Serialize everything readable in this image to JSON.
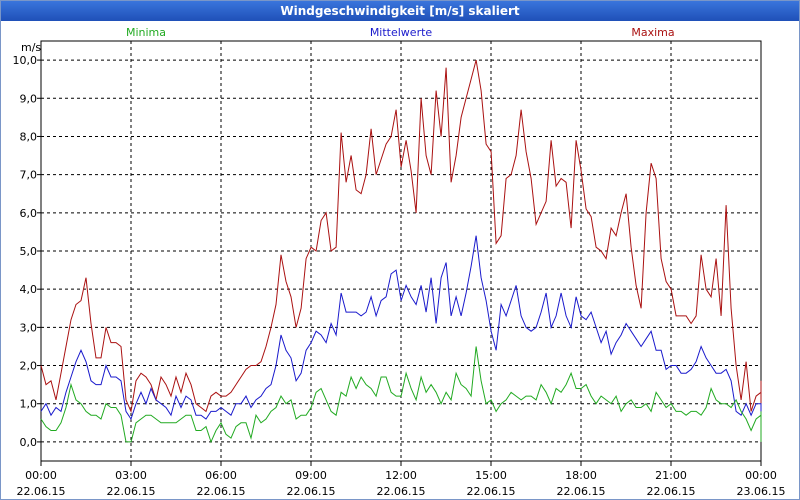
{
  "window": {
    "title": "Windgeschwindigkeit [m/s] skaliert"
  },
  "chart_data": {
    "type": "line",
    "title": "Windgeschwindigkeit [m/s] skaliert",
    "ylabel": "m/s",
    "xlabel": "",
    "ylim": [
      -0.5,
      10.5
    ],
    "xlim_hours": [
      0,
      24
    ],
    "grid": true,
    "y_ticks": [
      "0,0",
      "1,0",
      "2,0",
      "3,0",
      "4,0",
      "5,0",
      "6,0",
      "7,0",
      "8,0",
      "9,0",
      "10,0"
    ],
    "x_ticks": [
      {
        "time": "00:00",
        "date": "22.06.15"
      },
      {
        "time": "03:00",
        "date": "22.06.15"
      },
      {
        "time": "06:00",
        "date": "22.06.15"
      },
      {
        "time": "09:00",
        "date": "22.06.15"
      },
      {
        "time": "12:00",
        "date": "22.06.15"
      },
      {
        "time": "15:00",
        "date": "22.06.15"
      },
      {
        "time": "18:00",
        "date": "22.06.15"
      },
      {
        "time": "21:00",
        "date": "22.06.15"
      },
      {
        "time": "00:00",
        "date": "23.06.15"
      }
    ],
    "legend": [
      {
        "name": "Minima",
        "color": "#22aa22"
      },
      {
        "name": "Mittelwerte",
        "color": "#1a1acc"
      },
      {
        "name": "Maxima",
        "color": "#aa1111"
      }
    ],
    "interval_hours": 0.1667,
    "series": [
      {
        "name": "Maxima",
        "color": "#aa1111",
        "values": [
          2.0,
          1.5,
          1.6,
          1.1,
          1.8,
          2.5,
          3.2,
          3.6,
          3.7,
          4.3,
          3.1,
          2.2,
          2.2,
          3.0,
          2.6,
          2.6,
          2.5,
          1.1,
          0.8,
          1.6,
          1.8,
          1.7,
          1.5,
          1.1,
          1.7,
          1.5,
          1.2,
          1.7,
          1.3,
          1.8,
          1.5,
          1.0,
          0.9,
          0.8,
          1.2,
          1.3,
          1.2,
          1.2,
          1.3,
          1.5,
          1.7,
          1.9,
          2.0,
          2.0,
          2.1,
          2.5,
          3.0,
          3.6,
          4.9,
          4.2,
          3.8,
          3.0,
          3.5,
          4.8,
          5.1,
          5.0,
          5.8,
          6.0,
          5.0,
          5.1,
          8.1,
          6.8,
          7.5,
          6.6,
          6.5,
          7.0,
          8.2,
          7.0,
          7.4,
          7.8,
          8.0,
          8.7,
          7.2,
          7.9,
          7.1,
          6.0,
          9.0,
          7.5,
          7.0,
          9.2,
          8.0,
          9.8,
          6.8,
          7.5,
          8.5,
          9.0,
          9.5,
          10.0,
          9.2,
          7.8,
          7.6,
          5.2,
          5.4,
          6.9,
          7.0,
          7.5,
          8.7,
          7.6,
          6.9,
          5.7,
          6.0,
          6.3,
          7.9,
          6.7,
          6.9,
          6.8,
          5.6,
          7.9,
          7.1,
          6.1,
          5.9,
          5.1,
          5.0,
          4.8,
          5.6,
          5.4,
          6.0,
          6.5,
          5.1,
          4.1,
          3.5,
          6.0,
          7.3,
          6.9,
          4.8,
          4.2,
          4.0,
          3.3,
          3.3,
          3.3,
          3.1,
          3.3,
          4.9,
          4.0,
          3.8,
          4.8,
          3.3,
          6.2,
          3.5,
          2.0,
          1.1,
          2.1,
          0.8,
          1.2,
          1.3,
          1.3,
          1.0,
          1.6,
          1.2,
          0.9,
          0.8,
          0.8
        ]
      },
      {
        "name": "Mittelwerte",
        "color": "#1a1acc",
        "values": [
          0.8,
          1.0,
          0.7,
          0.9,
          0.8,
          1.3,
          1.7,
          2.1,
          2.4,
          2.1,
          1.6,
          1.5,
          1.5,
          2.0,
          1.7,
          1.7,
          1.6,
          0.8,
          0.6,
          1.0,
          1.3,
          1.0,
          1.4,
          1.1,
          1.0,
          0.9,
          0.7,
          1.2,
          0.9,
          1.2,
          1.1,
          0.7,
          0.7,
          0.6,
          0.8,
          0.8,
          0.9,
          0.8,
          0.7,
          1.0,
          1.0,
          1.2,
          0.9,
          1.1,
          1.2,
          1.4,
          1.5,
          2.0,
          2.8,
          2.4,
          2.2,
          1.6,
          1.8,
          2.4,
          2.6,
          2.9,
          2.8,
          2.6,
          3.1,
          2.8,
          3.9,
          3.4,
          3.4,
          3.4,
          3.3,
          3.4,
          3.8,
          3.3,
          3.7,
          3.8,
          4.4,
          4.5,
          3.7,
          4.1,
          3.8,
          3.6,
          4.1,
          3.4,
          4.3,
          3.1,
          4.3,
          4.7,
          3.3,
          3.8,
          3.3,
          3.9,
          4.6,
          5.4,
          4.3,
          3.7,
          2.9,
          2.4,
          3.6,
          3.3,
          3.7,
          4.1,
          3.3,
          3.0,
          2.9,
          3.0,
          3.4,
          3.9,
          3.0,
          3.3,
          3.9,
          3.3,
          3.0,
          3.8,
          3.3,
          3.2,
          3.4,
          3.0,
          2.6,
          2.9,
          2.3,
          2.6,
          2.8,
          3.1,
          2.9,
          2.7,
          2.5,
          2.7,
          2.9,
          2.4,
          2.4,
          1.9,
          2.0,
          2.0,
          1.8,
          1.8,
          1.9,
          2.1,
          2.5,
          2.2,
          2.0,
          1.8,
          1.8,
          1.9,
          1.6,
          0.8,
          0.7,
          1.0,
          0.7,
          1.0,
          1.0,
          0.8,
          0.8,
          0.9,
          0.9,
          0.7,
          0.5,
          0.6
        ]
      },
      {
        "name": "Minima",
        "color": "#22aa22",
        "values": [
          0.6,
          0.4,
          0.3,
          0.3,
          0.5,
          0.9,
          1.5,
          1.1,
          1.0,
          0.8,
          0.7,
          0.7,
          0.6,
          1.0,
          0.9,
          0.9,
          0.7,
          0.0,
          0.0,
          0.5,
          0.6,
          0.7,
          0.7,
          0.6,
          0.5,
          0.5,
          0.5,
          0.5,
          0.6,
          0.7,
          0.7,
          0.3,
          0.3,
          0.4,
          0.0,
          0.3,
          0.5,
          0.2,
          0.1,
          0.4,
          0.5,
          0.5,
          0.1,
          0.7,
          0.5,
          0.6,
          0.8,
          0.9,
          1.2,
          1.0,
          1.1,
          0.6,
          0.7,
          0.7,
          0.9,
          1.3,
          1.4,
          1.1,
          0.8,
          0.7,
          1.3,
          1.2,
          1.7,
          1.4,
          1.7,
          1.5,
          1.4,
          1.2,
          1.7,
          1.7,
          1.3,
          1.2,
          1.2,
          1.8,
          1.4,
          1.1,
          1.7,
          1.3,
          1.5,
          1.3,
          1.0,
          1.3,
          1.1,
          1.8,
          1.5,
          1.4,
          1.2,
          2.5,
          1.6,
          1.0,
          1.1,
          0.8,
          1.0,
          1.1,
          1.3,
          1.2,
          1.1,
          1.2,
          1.2,
          1.1,
          1.5,
          1.3,
          1.0,
          1.4,
          1.3,
          1.5,
          1.8,
          1.4,
          1.4,
          1.5,
          1.2,
          1.0,
          1.2,
          1.1,
          1.0,
          1.2,
          0.8,
          1.0,
          1.1,
          0.9,
          0.9,
          1.0,
          0.8,
          1.3,
          1.1,
          0.9,
          1.0,
          0.8,
          0.8,
          0.7,
          0.8,
          0.8,
          0.7,
          0.9,
          1.4,
          1.1,
          1.0,
          1.0,
          0.9,
          1.1,
          0.8,
          0.6,
          0.3,
          0.6,
          0.7,
          0.6,
          0.6,
          0.8,
          0.5,
          0.3,
          0.0,
          0.0,
          0.1,
          0.4
        ]
      }
    ]
  }
}
